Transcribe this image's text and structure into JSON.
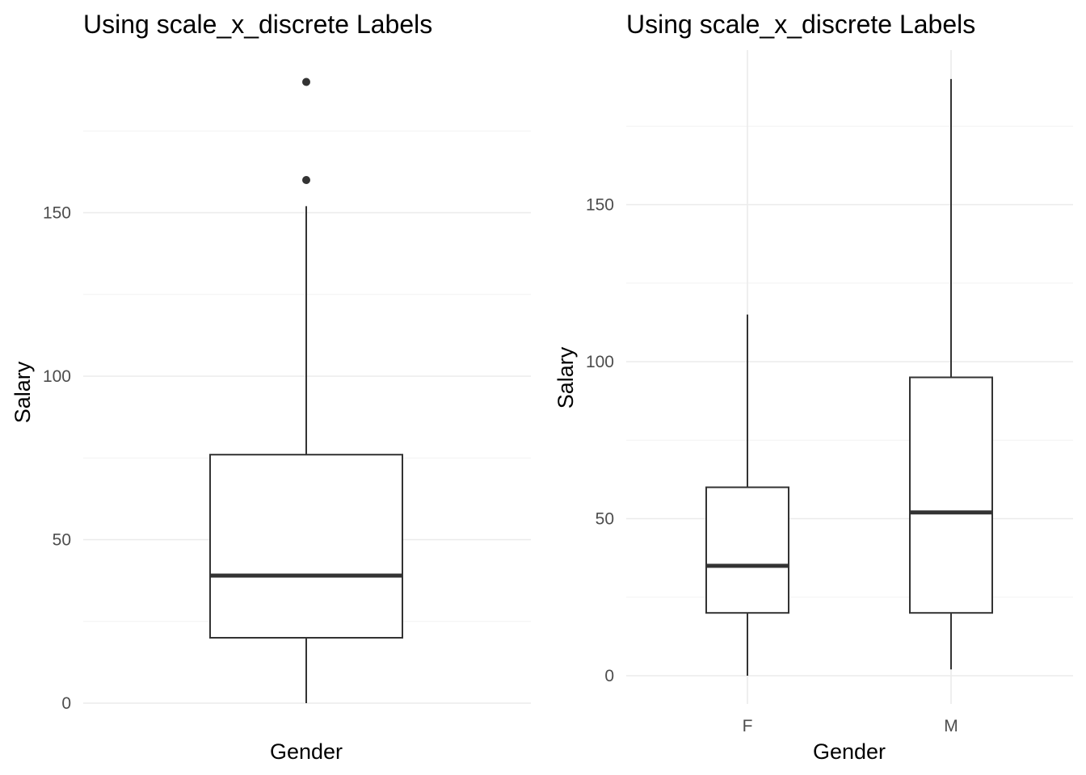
{
  "chart_data": [
    {
      "type": "boxplot",
      "title": "Using scale_x_discrete Labels",
      "xlabel": "Gender",
      "ylabel": "Salary",
      "ylim": [
        0,
        190
      ],
      "yticks": [
        0,
        50,
        100,
        150
      ],
      "yticks_minor": [
        25,
        75,
        125,
        175
      ],
      "x_grid": false,
      "categories": [
        ""
      ],
      "boxes": [
        {
          "category": "",
          "min": 0,
          "q1": 20,
          "median": 39,
          "q3": 76,
          "max": 152,
          "outliers": [
            160,
            190
          ]
        }
      ]
    },
    {
      "type": "boxplot",
      "title": "Using scale_x_discrete Labels",
      "xlabel": "Gender",
      "ylabel": "Salary",
      "ylim": [
        0,
        190
      ],
      "yticks": [
        0,
        50,
        100,
        150
      ],
      "yticks_minor": [
        25,
        75,
        125,
        175
      ],
      "x_grid": true,
      "categories": [
        "F",
        "M"
      ],
      "boxes": [
        {
          "category": "F",
          "min": 0,
          "q1": 20,
          "median": 35,
          "q3": 60,
          "max": 115,
          "outliers": []
        },
        {
          "category": "M",
          "min": 2,
          "q1": 20,
          "median": 52,
          "q3": 95,
          "max": 190,
          "outliers": []
        }
      ]
    }
  ]
}
